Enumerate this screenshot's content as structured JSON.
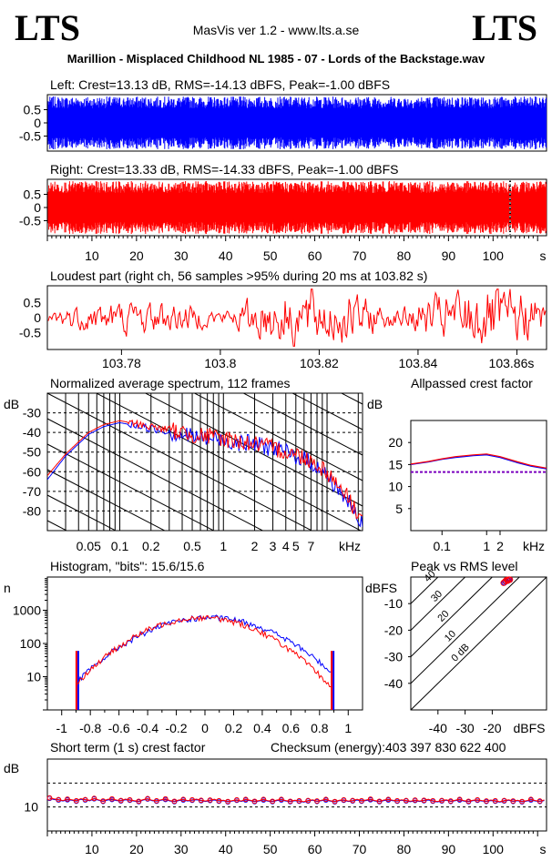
{
  "header": {
    "logo_left": "LTS",
    "logo_right": "LTS",
    "app_title": "MasVis ver 1.2 - www.lts.a.se",
    "file_title": "Marillion - Misplaced Childhood NL 1985 - 07 - Lords of the Backstage.wav"
  },
  "colors": {
    "left": "#0000ff",
    "right": "#ff0000",
    "grid": "#000000",
    "reference": "#7b00bf"
  },
  "chart_data": [
    {
      "id": "left",
      "type": "area",
      "title": "Left: Crest=13.13 dB, RMS=-14.13 dBFS, Peak=-1.00 dBFS",
      "series": [
        {
          "name": "Left",
          "color": "#0000ff"
        }
      ],
      "ylim": [
        -1,
        1
      ],
      "yticks": [
        "0.5",
        "0",
        "-0.5"
      ],
      "amplitude_envelope": 0.95
    },
    {
      "id": "right",
      "type": "area",
      "title": "Right: Crest=13.33 dB, RMS=-14.33 dBFS, Peak=-1.00 dBFS",
      "series": [
        {
          "name": "Right",
          "color": "#ff0000"
        }
      ],
      "ylim": [
        -1,
        1
      ],
      "yticks": [
        "0.5",
        "0",
        "-0.5"
      ],
      "xticks": [
        "10",
        "20",
        "30",
        "40",
        "50",
        "60",
        "70",
        "80",
        "90",
        "100",
        "s"
      ],
      "x_range_s": [
        0,
        112
      ],
      "loudest_marker_s": 103.82
    },
    {
      "id": "loudest",
      "type": "line",
      "title": "Loudest part (right ch, 56 samples >95% during 20 ms at 103.82 s)",
      "ylim": [
        -1,
        1
      ],
      "yticks": [
        "0.5",
        "0",
        "-0.5"
      ],
      "xlim": [
        103.765,
        103.866
      ],
      "xticks": [
        "103.78",
        "103.8",
        "103.82",
        "103.84",
        "103.86s"
      ],
      "x_tick_values": [
        103.78,
        103.8,
        103.82,
        103.84,
        103.86
      ]
    },
    {
      "id": "spectrum",
      "type": "line",
      "title": "Normalized average spectrum, 112 frames",
      "ylabel": "dB",
      "ylim": [
        -90,
        -20
      ],
      "yticks": [
        "-30",
        "-40",
        "-50",
        "-60",
        "-70",
        "-80"
      ],
      "xlim_khz": [
        0.02,
        22
      ],
      "xticks": [
        "0.05",
        "0.1",
        "0.2",
        "0.5",
        "1",
        "2",
        "3",
        "4",
        "5",
        "7",
        "kHz"
      ],
      "x_tick_values_khz": [
        0.05,
        0.1,
        0.2,
        0.5,
        1,
        2,
        3,
        4,
        5,
        7
      ],
      "series": [
        {
          "name": "Left",
          "color": "#0000ff",
          "x_khz": [
            0.02,
            0.03,
            0.05,
            0.07,
            0.1,
            0.2,
            0.5,
            1,
            2,
            3,
            5,
            7,
            10,
            15,
            22
          ],
          "y": [
            -64,
            -52,
            -41,
            -37,
            -35,
            -38,
            -42,
            -44,
            -46,
            -48,
            -52,
            -55,
            -62,
            -73,
            -88
          ]
        },
        {
          "name": "Right",
          "color": "#ff0000",
          "x_khz": [
            0.02,
            0.03,
            0.05,
            0.07,
            0.1,
            0.2,
            0.5,
            1,
            2,
            3,
            5,
            7,
            10,
            15,
            22
          ],
          "y": [
            -62,
            -51,
            -40,
            -36,
            -34,
            -37,
            -41,
            -43,
            -46,
            -48,
            -51,
            -54,
            -60,
            -71,
            -85
          ]
        }
      ]
    },
    {
      "id": "allpassed",
      "type": "line",
      "title": "Allpassed crest factor",
      "ylabel": "dB",
      "ylim": [
        0,
        25
      ],
      "yticks": [
        "20",
        "15",
        "10",
        "5"
      ],
      "xticks": [
        "0.1",
        "1",
        "2",
        "kHz"
      ],
      "x_tick_values_khz": [
        0.1,
        1,
        2
      ],
      "xlim_khz": [
        0.02,
        22
      ],
      "series": [
        {
          "name": "Left",
          "color": "#0000ff",
          "x_khz": [
            0.02,
            0.05,
            0.1,
            0.2,
            0.5,
            1,
            2,
            5,
            10,
            22
          ],
          "y": [
            15.0,
            15.6,
            16.2,
            16.6,
            17.0,
            17.2,
            16.6,
            15.4,
            14.6,
            14.0
          ]
        },
        {
          "name": "Right",
          "color": "#ff0000",
          "x_khz": [
            0.02,
            0.05,
            0.1,
            0.2,
            0.5,
            1,
            2,
            5,
            10,
            22
          ],
          "y": [
            15.1,
            15.7,
            16.3,
            16.8,
            17.2,
            17.4,
            16.8,
            15.6,
            14.8,
            14.2
          ]
        }
      ],
      "reference_level": 13.3
    },
    {
      "id": "histogram",
      "type": "line",
      "title": "Histogram, \"bits\": 15.6/15.6",
      "ylabel": "n",
      "y_scale": "log",
      "ylim": [
        1,
        10000
      ],
      "yticks": [
        "1000",
        "100",
        "10"
      ],
      "xlim": [
        -1.1,
        1.1
      ],
      "xticks": [
        "-1",
        "-0.8",
        "-0.6",
        "-0.4",
        "-0.2",
        "0",
        "0.2",
        "0.4",
        "0.6",
        "0.8",
        "1"
      ],
      "x_tick_values": [
        -1,
        -0.8,
        -0.6,
        -0.4,
        -0.2,
        0,
        0.2,
        0.4,
        0.6,
        0.8,
        1
      ],
      "peak_count": 600,
      "clip_level": 0.891,
      "clip_count": 60,
      "series": [
        {
          "name": "Left",
          "color": "#0000ff"
        },
        {
          "name": "Right",
          "color": "#ff0000"
        }
      ]
    },
    {
      "id": "peak_vs_rms",
      "type": "scatter",
      "title": "Peak vs RMS level",
      "ylabel": "dBFS",
      "xlim": [
        -50,
        0
      ],
      "ylim": [
        -50,
        0
      ],
      "xticks": [
        "-40",
        "-30",
        "-20",
        "dBFS"
      ],
      "x_tick_values": [
        -40,
        -30,
        -20
      ],
      "yticks": [
        "-10",
        "-20",
        "-30",
        "-40"
      ],
      "y_tick_values": [
        -10,
        -20,
        -30,
        -40
      ],
      "diagonal_labels": [
        "40",
        "30",
        "20",
        "10",
        "0 dB"
      ],
      "diagonal_offsets_db": [
        40,
        30,
        20,
        10,
        0
      ],
      "series": [
        {
          "name": "Left",
          "color": "#0000ff",
          "x": [
            -15.0,
            -14.5,
            -13.8,
            -14.2,
            -15.5
          ],
          "y": [
            -1.5,
            -1.2,
            -1.0,
            -1.3,
            -2.0
          ]
        },
        {
          "name": "Right",
          "color": "#ff0000",
          "x": [
            -15.2,
            -14.7,
            -14.0,
            -14.4,
            -15.8,
            -13.5
          ],
          "y": [
            -1.6,
            -1.1,
            -1.0,
            -1.4,
            -2.2,
            -1.0
          ]
        }
      ]
    },
    {
      "id": "short_term",
      "type": "line",
      "title": "Short term (1 s) crest factor",
      "checksum_label": "Checksum (energy):",
      "checksum_value": "403 397 830 622 400",
      "ylabel": "dB",
      "yticks": [
        "10"
      ],
      "ylim": [
        0,
        30
      ],
      "reference_levels": [
        20,
        10
      ],
      "xlim": [
        0,
        112
      ],
      "xticks": [
        "10",
        "20",
        "30",
        "40",
        "50",
        "60",
        "70",
        "80",
        "90",
        "100",
        "s"
      ],
      "x_tick_values": [
        10,
        20,
        30,
        40,
        50,
        60,
        70,
        80,
        90,
        100
      ],
      "series": [
        {
          "name": "Left",
          "color": "#0000ff",
          "values": [
            13.6,
            13.1,
            12.9,
            12.5,
            13.0,
            12.8,
            12.4,
            13.2,
            12.9,
            12.6,
            13.4,
            12.8,
            12.3,
            12.9,
            13.1,
            12.7,
            12.5,
            13.0,
            12.8,
            12.4,
            12.2,
            12.9,
            13.3,
            12.6,
            12.4,
            12.8,
            13.1,
            12.5,
            12.2,
            12.7,
            12.9,
            12.5,
            12.8,
            13.0,
            12.6,
            12.3,
            12.7,
            12.9,
            12.4,
            12.6,
            12.1,
            12.5,
            12.8,
            12.3,
            12.9,
            12.6,
            12.2,
            12.5,
            12.9,
            12.4,
            12.2,
            12.7,
            12.9,
            12.5,
            12.2,
            12.6,
            12.4,
            12.0,
            12.5,
            12.8,
            12.3,
            12.6,
            12.9,
            12.4,
            12.1,
            12.6,
            12.8,
            12.3,
            12.5,
            12.9,
            12.4,
            12.7,
            13.0,
            12.5,
            12.2,
            12.7,
            12.9,
            12.6,
            12.4,
            12.8,
            12.5,
            12.2,
            12.7,
            12.3,
            12.6,
            12.9,
            12.4,
            12.1,
            12.5,
            12.8,
            12.3,
            12.6,
            12.9,
            12.4,
            12.2,
            12.6,
            12.8,
            12.5,
            12.3,
            12.7,
            12.4,
            12.0,
            12.5,
            12.8,
            12.3,
            12.6,
            12.1,
            12.4,
            12.9,
            12.5,
            12.3,
            12.7
          ]
        },
        {
          "name": "Right",
          "color": "#ff0000",
          "values": [
            13.8,
            13.4,
            13.1,
            12.7,
            13.3,
            13.0,
            12.6,
            13.5,
            13.1,
            12.8,
            13.6,
            13.0,
            12.5,
            13.2,
            13.4,
            12.9,
            12.7,
            13.3,
            13.0,
            12.6,
            12.4,
            13.1,
            13.5,
            12.8,
            12.6,
            13.0,
            13.4,
            12.7,
            12.4,
            12.9,
            13.2,
            12.7,
            13.0,
            13.3,
            12.8,
            12.5,
            12.9,
            13.2,
            12.6,
            12.8,
            12.3,
            12.7,
            13.0,
            12.5,
            13.2,
            12.8,
            12.4,
            12.7,
            13.2,
            12.6,
            12.4,
            12.9,
            13.2,
            12.7,
            12.4,
            12.8,
            12.6,
            12.2,
            12.7,
            13.0,
            12.5,
            12.8,
            13.2,
            12.6,
            12.3,
            12.8,
            13.0,
            12.5,
            12.7,
            13.2,
            12.6,
            12.9,
            13.3,
            12.7,
            12.4,
            12.9,
            13.2,
            12.8,
            12.6,
            13.0,
            12.7,
            12.4,
            12.9,
            12.5,
            12.8,
            13.2,
            12.6,
            12.3,
            12.7,
            13.0,
            12.5,
            12.8,
            13.2,
            12.6,
            12.4,
            12.8,
            13.0,
            12.7,
            12.5,
            12.9,
            12.6,
            12.2,
            12.7,
            13.0,
            12.5,
            12.8,
            12.3,
            12.6,
            13.2,
            12.7,
            12.5,
            12.9
          ]
        }
      ]
    }
  ]
}
